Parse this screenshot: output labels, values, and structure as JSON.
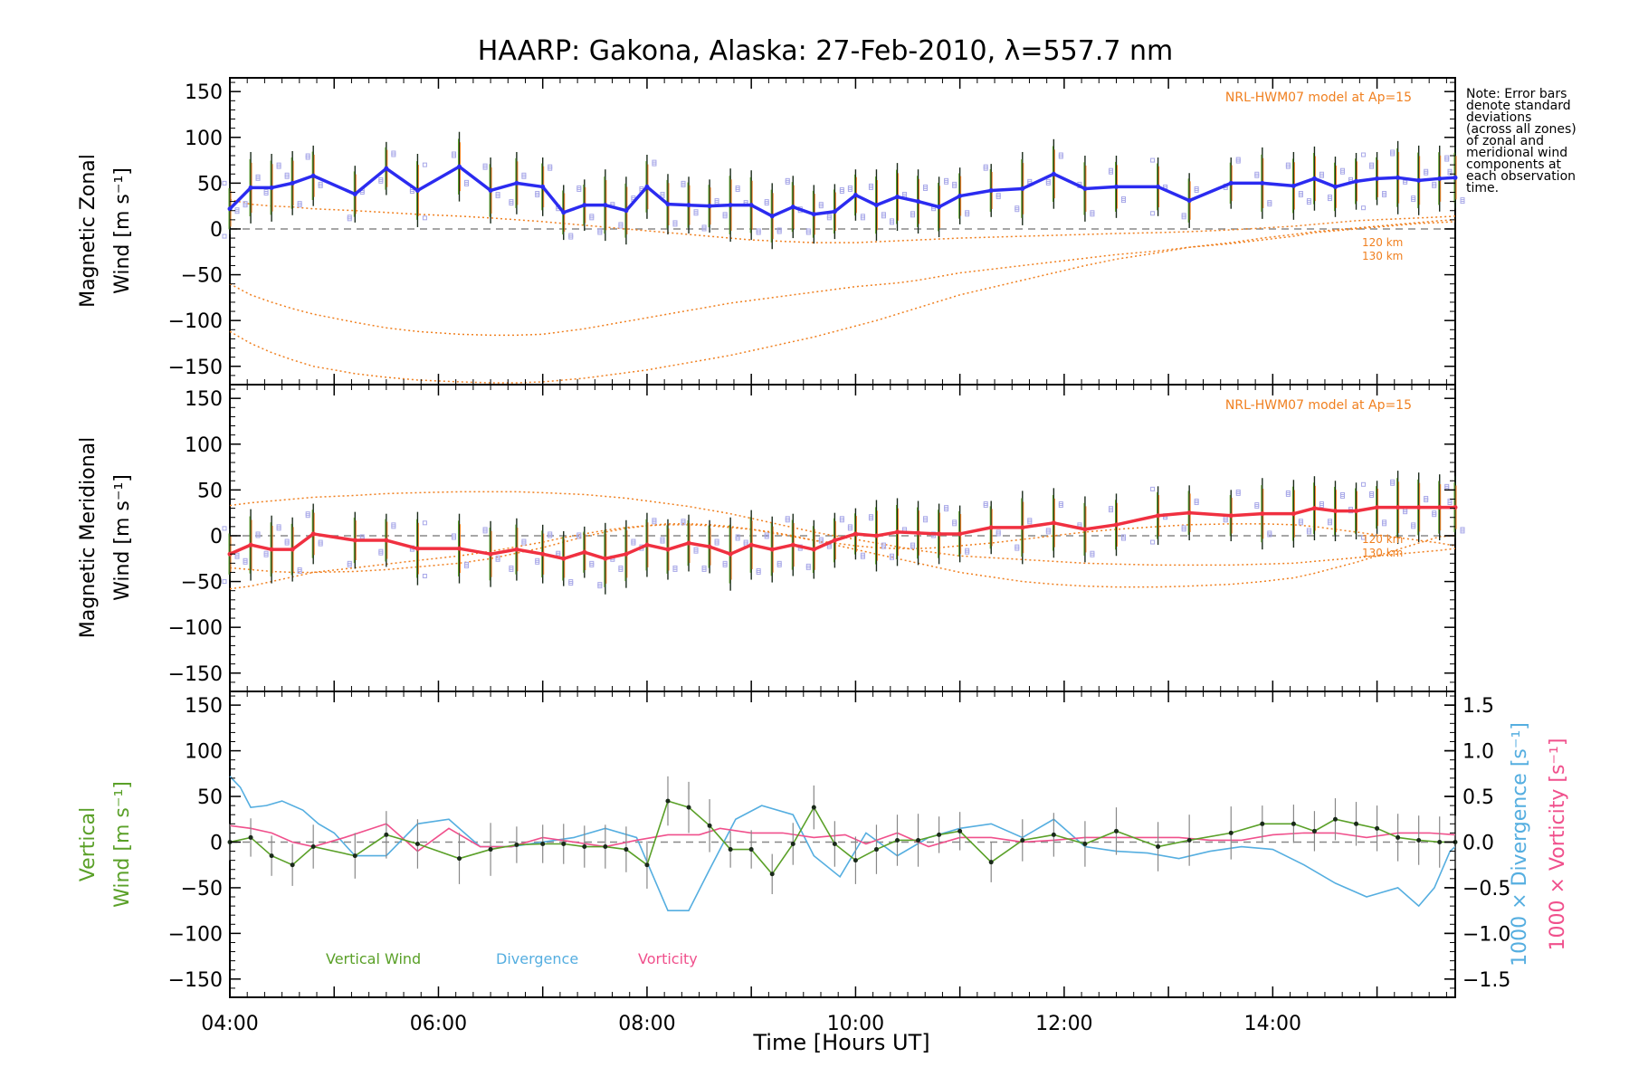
{
  "title": "HAARP: Gakona,  Alaska: 27-Feb-2010, λ=557.7 nm",
  "note_lines": [
    "Note: Error bars",
    "denote standard",
    "deviations",
    "(across all zones)",
    "of zonal and",
    "meridional wind",
    "components at",
    "each observation",
    "time."
  ],
  "colors": {
    "zonal": "#2b2bf0",
    "meridional": "#f03040",
    "model": "#f08020",
    "vertical": "#5aa028",
    "divergence": "#55aee0",
    "vorticity": "#f0508c",
    "zero_line": "#888888"
  },
  "chart_data": [
    {
      "type": "line",
      "panel": "zonal",
      "ylabel": "Magnetic Zonal",
      "ylabel2": "Wind [m s⁻¹]",
      "model_label": "NRL-HWM07 model at Ap=15",
      "model_curve_labels": [
        "120 km",
        "130 km"
      ],
      "xlim": [
        4.0,
        15.75
      ],
      "ylim": [
        -170,
        165
      ],
      "yticks": [
        150,
        100,
        50,
        0,
        -50,
        -100,
        -150
      ],
      "grid": false,
      "x": [
        4.0,
        4.2,
        4.4,
        4.6,
        4.8,
        5.2,
        5.5,
        5.8,
        6.2,
        6.5,
        6.75,
        7.0,
        7.2,
        7.4,
        7.6,
        7.8,
        8.0,
        8.2,
        8.4,
        8.6,
        8.8,
        9.0,
        9.2,
        9.4,
        9.6,
        9.8,
        10.0,
        10.2,
        10.4,
        10.6,
        10.8,
        11.0,
        11.3,
        11.6,
        11.9,
        12.2,
        12.5,
        12.9,
        13.2,
        13.6,
        13.9,
        14.2,
        14.4,
        14.6,
        14.8,
        15.0,
        15.2,
        15.4,
        15.6,
        15.75
      ],
      "series": [
        {
          "values": [
            22,
            45,
            45,
            50,
            58,
            38,
            66,
            42,
            68,
            42,
            50,
            46,
            18,
            26,
            26,
            20,
            46,
            27,
            26,
            25,
            26,
            26,
            14,
            24,
            16,
            19,
            37,
            26,
            35,
            30,
            24,
            36,
            42,
            44,
            60,
            44,
            46,
            46,
            31,
            50,
            50,
            47,
            55,
            46,
            52,
            55,
            56,
            53,
            55,
            56
          ]
        },
        {
          "values": [
            32,
            27,
            25,
            24,
            22,
            20,
            18,
            16,
            14,
            12,
            10,
            8,
            6,
            4,
            2,
            0,
            -2,
            -4,
            -6,
            -8,
            -10,
            -12,
            -13,
            -14,
            -15,
            -15,
            -15,
            -14,
            -13,
            -12,
            -11,
            -10,
            -9,
            -8,
            -7,
            -6,
            -5,
            -4,
            -3,
            -1,
            1,
            3,
            5,
            7,
            9,
            10,
            11,
            12,
            13,
            14
          ]
        },
        {
          "values": [
            -60,
            -72,
            -80,
            -87,
            -93,
            -102,
            -108,
            -112,
            -115,
            -116,
            -116,
            -115,
            -112,
            -109,
            -105,
            -101,
            -97,
            -93,
            -89,
            -85,
            -81,
            -78,
            -75,
            -72,
            -69,
            -66,
            -63,
            -61,
            -59,
            -56,
            -52,
            -48,
            -44,
            -40,
            -36,
            -32,
            -28,
            -24,
            -20,
            -16,
            -12,
            -8,
            -4,
            -2,
            0,
            2,
            4,
            6,
            7,
            8
          ]
        },
        {
          "values": [
            -112,
            -125,
            -135,
            -143,
            -150,
            -158,
            -162,
            -165,
            -167,
            -168,
            -168,
            -167,
            -165,
            -163,
            -160,
            -157,
            -154,
            -150,
            -146,
            -142,
            -138,
            -133,
            -128,
            -123,
            -118,
            -112,
            -106,
            -100,
            -93,
            -86,
            -79,
            -72,
            -64,
            -56,
            -48,
            -40,
            -33,
            -26,
            -20,
            -15,
            -10,
            -6,
            -3,
            -1,
            1,
            3,
            5,
            7,
            9,
            10
          ]
        }
      ]
    },
    {
      "type": "line",
      "panel": "meridional",
      "ylabel": "Magnetic Meridional",
      "ylabel2": "Wind [m s⁻¹]",
      "model_label": "NRL-HWM07 model at Ap=15",
      "model_curve_labels": [
        "120 km",
        "130 km"
      ],
      "xlim": [
        4.0,
        15.75
      ],
      "ylim": [
        -170,
        165
      ],
      "yticks": [
        150,
        100,
        50,
        0,
        -50,
        -100,
        -150
      ],
      "grid": false,
      "x": [
        4.0,
        4.2,
        4.4,
        4.6,
        4.8,
        5.2,
        5.5,
        5.8,
        6.2,
        6.5,
        6.75,
        7.0,
        7.2,
        7.4,
        7.6,
        7.8,
        8.0,
        8.2,
        8.4,
        8.6,
        8.8,
        9.0,
        9.2,
        9.4,
        9.6,
        9.8,
        10.0,
        10.2,
        10.4,
        10.6,
        10.8,
        11.0,
        11.3,
        11.6,
        11.9,
        12.2,
        12.5,
        12.9,
        13.2,
        13.6,
        13.9,
        14.2,
        14.4,
        14.6,
        14.8,
        15.0,
        15.2,
        15.4,
        15.6,
        15.75
      ],
      "series": [
        {
          "values": [
            -20,
            -10,
            -15,
            -15,
            2,
            -5,
            -5,
            -14,
            -14,
            -20,
            -15,
            -20,
            -25,
            -18,
            -25,
            -20,
            -10,
            -15,
            -8,
            -12,
            -20,
            -10,
            -15,
            -10,
            -15,
            -5,
            2,
            0,
            4,
            3,
            2,
            2,
            9,
            9,
            14,
            7,
            12,
            22,
            25,
            22,
            24,
            24,
            30,
            27,
            27,
            31,
            31,
            31,
            31,
            31
          ]
        },
        {
          "values": [
            33,
            36,
            38,
            40,
            42,
            44,
            46,
            47,
            48,
            48,
            48,
            47,
            46,
            45,
            43,
            41,
            38,
            35,
            32,
            28,
            24,
            19,
            14,
            9,
            4,
            0,
            -4,
            -8,
            -12,
            -16,
            -19,
            -22,
            -24,
            -26,
            -28,
            -30,
            -31,
            -32,
            -32,
            -32,
            -31,
            -30,
            -28,
            -26,
            -24,
            -22,
            -20,
            -18,
            -16,
            -14
          ]
        },
        {
          "values": [
            -58,
            -55,
            -50,
            -45,
            -40,
            -35,
            -31,
            -27,
            -22,
            -17,
            -12,
            -7,
            -2,
            2,
            6,
            9,
            11,
            12,
            12,
            11,
            9,
            7,
            4,
            0,
            -5,
            -10,
            -15,
            -20,
            -25,
            -30,
            -35,
            -40,
            -45,
            -50,
            -53,
            -55,
            -56,
            -56,
            -55,
            -53,
            -50,
            -46,
            -41,
            -35,
            -29,
            -22,
            -15,
            -8,
            -1,
            0
          ]
        },
        {
          "values": [
            -35,
            -37,
            -39,
            -40,
            -40,
            -39,
            -37,
            -34,
            -30,
            -25,
            -19,
            -13,
            -7,
            -1,
            4,
            8,
            11,
            13,
            13,
            12,
            10,
            7,
            3,
            -1,
            -5,
            -8,
            -11,
            -13,
            -14,
            -14,
            -13,
            -11,
            -8,
            -4,
            0,
            4,
            7,
            10,
            12,
            13,
            13,
            12,
            10,
            7,
            4,
            1,
            -2,
            -5,
            -8,
            -11
          ]
        }
      ]
    },
    {
      "type": "line",
      "panel": "vertical",
      "ylabel": "Vertical",
      "ylabel2": "Wind [m s⁻¹]",
      "y2label_divergence": "1000 × Divergence [s⁻¹]",
      "y2label_vorticity": "1000 × Vorticity [s⁻¹]",
      "xlabel": "Time [Hours UT]",
      "xlim": [
        4.0,
        15.75
      ],
      "ylim": [
        -170,
        165
      ],
      "yticks": [
        150,
        100,
        50,
        0,
        -50,
        -100,
        -150
      ],
      "y2lim": [
        -1.7,
        1.65
      ],
      "y2ticks": [
        "1.5",
        "1.0",
        "0.5",
        "0.0",
        "−0.5",
        "−1.0",
        "−1.5"
      ],
      "y2tick_values": [
        1.5,
        1.0,
        0.5,
        0.0,
        -0.5,
        -1.0,
        -1.5
      ],
      "xticks": [
        "04:00",
        "06:00",
        "08:00",
        "10:00",
        "12:00",
        "14:00"
      ],
      "xtick_values": [
        4,
        6,
        8,
        10,
        12,
        14
      ],
      "legend": [
        "Vertical Wind",
        "Divergence",
        "Vorticity"
      ],
      "legend_position": "bottom-left",
      "grid": false,
      "vertical_wind": {
        "x": [
          4.0,
          4.2,
          4.4,
          4.6,
          4.8,
          5.2,
          5.5,
          5.8,
          6.2,
          6.5,
          6.75,
          7.0,
          7.2,
          7.4,
          7.6,
          7.8,
          8.0,
          8.2,
          8.4,
          8.6,
          8.8,
          9.0,
          9.2,
          9.4,
          9.6,
          9.8,
          10.0,
          10.2,
          10.4,
          10.6,
          10.8,
          11.0,
          11.3,
          11.6,
          11.9,
          12.2,
          12.5,
          12.9,
          13.2,
          13.6,
          13.9,
          14.2,
          14.4,
          14.6,
          14.8,
          15.0,
          15.2,
          15.4,
          15.6,
          15.75
        ],
        "values": [
          0,
          5,
          -15,
          -25,
          -5,
          -15,
          8,
          -2,
          -18,
          -8,
          -3,
          -2,
          -2,
          -5,
          -5,
          -8,
          -25,
          45,
          38,
          18,
          -8,
          -8,
          -35,
          -2,
          38,
          -2,
          -20,
          -8,
          2,
          2,
          8,
          12,
          -22,
          2,
          8,
          -2,
          12,
          -5,
          2,
          10,
          20,
          20,
          12,
          25,
          20,
          15,
          5,
          2,
          0,
          0
        ]
      },
      "divergence": {
        "x": [
          4.0,
          4.1,
          4.2,
          4.35,
          4.5,
          4.7,
          4.85,
          5.0,
          5.2,
          5.5,
          5.8,
          6.1,
          6.4,
          6.7,
          7.0,
          7.3,
          7.6,
          7.9,
          8.2,
          8.4,
          8.6,
          8.85,
          9.1,
          9.4,
          9.6,
          9.85,
          10.1,
          10.4,
          10.7,
          11.0,
          11.3,
          11.6,
          11.9,
          12.2,
          12.5,
          12.8,
          13.1,
          13.4,
          13.7,
          14.0,
          14.3,
          14.6,
          14.9,
          15.2,
          15.4,
          15.55,
          15.7,
          15.75
        ],
        "values": [
          0.72,
          0.6,
          0.38,
          0.4,
          0.45,
          0.35,
          0.2,
          0.1,
          -0.15,
          -0.15,
          0.2,
          0.25,
          -0.05,
          -0.05,
          0.0,
          0.05,
          0.15,
          0.05,
          -0.75,
          -0.75,
          -0.3,
          0.25,
          0.4,
          0.3,
          -0.15,
          -0.38,
          0.1,
          -0.15,
          0.05,
          0.15,
          0.2,
          0.05,
          0.25,
          -0.05,
          -0.1,
          -0.12,
          -0.18,
          -0.1,
          -0.05,
          -0.08,
          -0.25,
          -0.45,
          -0.6,
          -0.5,
          -0.7,
          -0.5,
          -0.1,
          -0.05
        ]
      },
      "vorticity": {
        "x": [
          4.0,
          4.2,
          4.4,
          4.6,
          4.8,
          5.1,
          5.5,
          5.8,
          6.1,
          6.4,
          6.7,
          7.0,
          7.3,
          7.6,
          7.9,
          8.2,
          8.5,
          8.7,
          9.0,
          9.3,
          9.6,
          9.9,
          10.1,
          10.4,
          10.7,
          11.0,
          11.3,
          11.6,
          11.9,
          12.2,
          12.5,
          12.8,
          13.1,
          13.4,
          13.7,
          14.0,
          14.3,
          14.6,
          14.9,
          15.2,
          15.5,
          15.75
        ],
        "values": [
          0.18,
          0.15,
          0.1,
          0.0,
          -0.05,
          0.05,
          0.2,
          -0.1,
          0.15,
          -0.05,
          -0.05,
          0.05,
          0.0,
          -0.05,
          0.02,
          0.08,
          0.08,
          0.15,
          0.1,
          0.1,
          0.05,
          0.08,
          -0.02,
          0.1,
          -0.05,
          0.05,
          0.05,
          0.0,
          0.02,
          0.05,
          0.05,
          0.05,
          0.05,
          0.02,
          0.02,
          0.08,
          0.1,
          0.1,
          0.05,
          0.1,
          0.1,
          0.08
        ]
      }
    }
  ]
}
